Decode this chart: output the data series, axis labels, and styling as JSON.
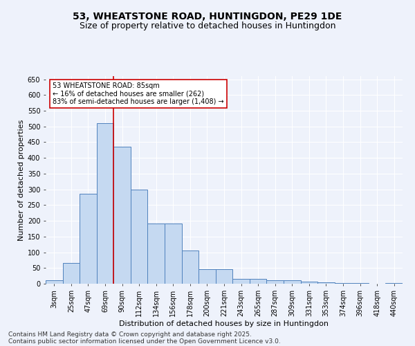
{
  "title_line1": "53, WHEATSTONE ROAD, HUNTINGDON, PE29 1DE",
  "title_line2": "Size of property relative to detached houses in Huntingdon",
  "xlabel": "Distribution of detached houses by size in Huntingdon",
  "ylabel": "Number of detached properties",
  "categories": [
    "3sqm",
    "25sqm",
    "47sqm",
    "69sqm",
    "90sqm",
    "112sqm",
    "134sqm",
    "156sqm",
    "178sqm",
    "200sqm",
    "221sqm",
    "243sqm",
    "265sqm",
    "287sqm",
    "309sqm",
    "331sqm",
    "353sqm",
    "374sqm",
    "396sqm",
    "418sqm",
    "440sqm"
  ],
  "values": [
    10,
    67,
    285,
    510,
    435,
    300,
    192,
    192,
    105,
    46,
    46,
    15,
    15,
    10,
    10,
    7,
    5,
    2,
    2,
    0,
    2
  ],
  "bar_color": "#c5d9f1",
  "bar_edge_color": "#4f81bd",
  "annotation_text": "53 WHEATSTONE ROAD: 85sqm\n← 16% of detached houses are smaller (262)\n83% of semi-detached houses are larger (1,408) →",
  "annotation_box_color": "#ffffff",
  "annotation_box_edge_color": "#cc0000",
  "vline_color": "#cc0000",
  "vline_x": 3.5,
  "ylim": [
    0,
    660
  ],
  "yticks": [
    0,
    50,
    100,
    150,
    200,
    250,
    300,
    350,
    400,
    450,
    500,
    550,
    600,
    650
  ],
  "footer_line1": "Contains HM Land Registry data © Crown copyright and database right 2025.",
  "footer_line2": "Contains public sector information licensed under the Open Government Licence v3.0.",
  "background_color": "#eef2fb",
  "grid_color": "#ffffff",
  "title_fontsize": 10,
  "subtitle_fontsize": 9,
  "axis_label_fontsize": 8,
  "tick_fontsize": 7,
  "annotation_fontsize": 7,
  "footer_fontsize": 6.5
}
